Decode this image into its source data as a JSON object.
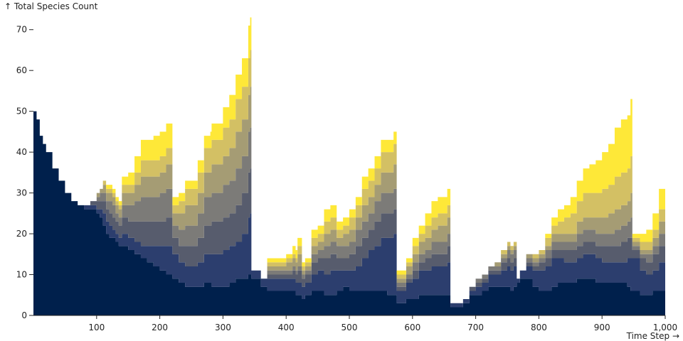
{
  "chart_data": {
    "type": "area",
    "stacked": true,
    "ylabel": "↑ Total Species Count",
    "xlabel": "Time Step →",
    "xlim": [
      0,
      1000
    ],
    "ylim": [
      0,
      75
    ],
    "x_ticks": [
      100,
      200,
      300,
      400,
      500,
      600,
      700,
      800,
      900,
      1000
    ],
    "x_tick_labels": [
      "100",
      "200",
      "300",
      "400",
      "500",
      "600",
      "700",
      "800",
      "900",
      "1,000"
    ],
    "y_ticks": [
      0,
      10,
      20,
      30,
      40,
      50,
      60,
      70
    ],
    "grid": false,
    "colors": [
      "#00204c",
      "#2c3e6e",
      "#575c6d",
      "#7c7b78",
      "#a59c74",
      "#d3c064",
      "#fee838"
    ],
    "x": [
      0,
      5,
      10,
      15,
      20,
      30,
      40,
      50,
      60,
      70,
      80,
      90,
      100,
      105,
      110,
      115,
      120,
      125,
      130,
      135,
      140,
      150,
      160,
      170,
      180,
      190,
      200,
      210,
      211,
      220,
      230,
      240,
      250,
      260,
      270,
      280,
      282,
      285,
      290,
      300,
      310,
      320,
      330,
      340,
      343,
      345,
      350,
      360,
      370,
      380,
      390,
      400,
      410,
      415,
      418,
      420,
      425,
      430,
      440,
      450,
      460,
      470,
      475,
      480,
      490,
      500,
      510,
      520,
      530,
      540,
      550,
      560,
      570,
      575,
      580,
      585,
      590,
      600,
      610,
      620,
      630,
      640,
      655,
      660,
      665,
      670,
      680,
      690,
      700,
      710,
      720,
      730,
      740,
      750,
      755,
      760,
      765,
      770,
      780,
      790,
      800,
      810,
      820,
      830,
      840,
      850,
      860,
      870,
      880,
      890,
      900,
      910,
      920,
      930,
      940,
      945,
      948,
      950,
      960,
      970,
      980,
      990,
      1000
    ],
    "series": [
      {
        "values": [
          50,
          48,
          44,
          42,
          40,
          36,
          33,
          30,
          28,
          27,
          26,
          26,
          25,
          24,
          22,
          20,
          19,
          19,
          18,
          17,
          17,
          16,
          15,
          14,
          13,
          12,
          11,
          10,
          10,
          9,
          8,
          7,
          7,
          7,
          8,
          8,
          7,
          7,
          7,
          7,
          8,
          9,
          9,
          10,
          10,
          9,
          9,
          7,
          6,
          6,
          6,
          6,
          6,
          5,
          5,
          5,
          4,
          5,
          6,
          6,
          5,
          5,
          5,
          6,
          7,
          6,
          6,
          6,
          6,
          6,
          6,
          5,
          5,
          3,
          3,
          3,
          4,
          4,
          5,
          5,
          5,
          5,
          5,
          2,
          2,
          2,
          3,
          5,
          5,
          6,
          7,
          7,
          7,
          7,
          6,
          7,
          8,
          9,
          9,
          7,
          6,
          6,
          7,
          8,
          8,
          8,
          9,
          9,
          9,
          8,
          8,
          8,
          8,
          8,
          7,
          6,
          6,
          6,
          5,
          5,
          6,
          6,
          6
        ]
      },
      {
        "values": [
          0,
          0,
          0,
          0,
          0,
          0,
          0,
          0,
          0,
          0,
          1,
          1,
          1,
          2,
          3,
          3,
          3,
          2,
          2,
          2,
          3,
          3,
          3,
          3,
          4,
          5,
          6,
          7,
          7,
          6,
          5,
          5,
          5,
          6,
          7,
          7,
          8,
          8,
          8,
          9,
          9,
          9,
          11,
          14,
          15,
          2,
          2,
          2,
          3,
          3,
          3,
          3,
          3,
          3,
          3,
          3,
          3,
          3,
          4,
          5,
          5,
          6,
          6,
          5,
          4,
          5,
          6,
          8,
          10,
          11,
          13,
          14,
          15,
          3,
          3,
          3,
          4,
          5,
          6,
          6,
          7,
          7,
          8,
          1,
          1,
          1,
          1,
          1,
          2,
          2,
          3,
          3,
          4,
          5,
          5,
          5,
          1,
          2,
          3,
          4,
          5,
          6,
          7,
          6,
          5,
          5,
          5,
          6,
          6,
          6,
          5,
          5,
          5,
          5,
          7,
          8,
          8,
          8,
          6,
          5,
          5,
          7,
          8
        ]
      },
      {
        "values": [
          0,
          0,
          0,
          0,
          0,
          0,
          0,
          0,
          0,
          0,
          0,
          1,
          2,
          2,
          3,
          3,
          3,
          3,
          3,
          3,
          4,
          4,
          5,
          6,
          6,
          6,
          6,
          7,
          7,
          4,
          4,
          5,
          5,
          6,
          7,
          7,
          8,
          8,
          8,
          8,
          8,
          9,
          10,
          11,
          11,
          0,
          0,
          0,
          1,
          1,
          1,
          1,
          2,
          2,
          3,
          3,
          2,
          2,
          3,
          3,
          4,
          4,
          4,
          3,
          3,
          4,
          5,
          5,
          5,
          6,
          6,
          6,
          6,
          1,
          1,
          1,
          1,
          2,
          2,
          3,
          3,
          3,
          4,
          0,
          0,
          0,
          0,
          1,
          1,
          1,
          1,
          1,
          2,
          2,
          2,
          2,
          0,
          0,
          1,
          1,
          2,
          2,
          2,
          2,
          3,
          3,
          3,
          3,
          3,
          3,
          4,
          4,
          4,
          5,
          5,
          5,
          2,
          2,
          3,
          3,
          4,
          4,
          4
        ]
      },
      {
        "values": [
          0,
          0,
          0,
          0,
          0,
          0,
          0,
          0,
          0,
          0,
          0,
          0,
          1,
          2,
          2,
          2,
          3,
          3,
          2,
          2,
          3,
          4,
          5,
          6,
          6,
          6,
          7,
          7,
          7,
          3,
          4,
          5,
          5,
          6,
          7,
          7,
          7,
          7,
          7,
          8,
          8,
          9,
          9,
          10,
          10,
          0,
          0,
          0,
          1,
          1,
          1,
          1,
          1,
          1,
          1,
          1,
          1,
          1,
          2,
          2,
          3,
          3,
          3,
          3,
          3,
          3,
          4,
          4,
          4,
          5,
          5,
          5,
          5,
          1,
          1,
          1,
          1,
          2,
          2,
          2,
          3,
          3,
          3,
          0,
          0,
          0,
          0,
          0,
          1,
          1,
          1,
          1,
          1,
          2,
          2,
          2,
          0,
          0,
          1,
          1,
          1,
          2,
          2,
          2,
          2,
          2,
          3,
          3,
          3,
          3,
          3,
          3,
          4,
          4,
          4,
          5,
          1,
          1,
          1,
          2,
          2,
          3,
          3
        ]
      },
      {
        "values": [
          0,
          0,
          0,
          0,
          0,
          0,
          0,
          0,
          0,
          0,
          0,
          0,
          1,
          1,
          2,
          2,
          2,
          2,
          2,
          2,
          3,
          3,
          4,
          5,
          5,
          5,
          5,
          6,
          6,
          3,
          4,
          5,
          5,
          5,
          6,
          6,
          7,
          7,
          7,
          7,
          8,
          9,
          9,
          9,
          10,
          0,
          0,
          0,
          1,
          1,
          1,
          2,
          2,
          2,
          3,
          3,
          1,
          1,
          2,
          2,
          3,
          3,
          3,
          2,
          3,
          3,
          3,
          4,
          4,
          4,
          5,
          5,
          6,
          1,
          1,
          1,
          2,
          2,
          3,
          3,
          3,
          4,
          4,
          0,
          0,
          0,
          0,
          0,
          0,
          0,
          0,
          1,
          1,
          1,
          1,
          1,
          0,
          0,
          1,
          1,
          1,
          1,
          2,
          2,
          2,
          2,
          3,
          3,
          3,
          4,
          4,
          5,
          5,
          5,
          5,
          6,
          1,
          1,
          1,
          1,
          2,
          3,
          3
        ]
      },
      {
        "values": [
          0,
          0,
          0,
          0,
          0,
          0,
          0,
          0,
          0,
          0,
          0,
          0,
          0,
          0,
          1,
          1,
          1,
          1,
          1,
          1,
          2,
          2,
          3,
          4,
          4,
          4,
          4,
          4,
          4,
          2,
          3,
          4,
          4,
          5,
          6,
          6,
          6,
          6,
          6,
          7,
          7,
          8,
          8,
          9,
          9,
          0,
          0,
          0,
          1,
          1,
          1,
          1,
          1,
          1,
          2,
          2,
          1,
          1,
          2,
          2,
          3,
          3,
          3,
          2,
          2,
          3,
          3,
          4,
          4,
          4,
          5,
          5,
          5,
          1,
          1,
          1,
          1,
          2,
          2,
          3,
          3,
          3,
          3,
          0,
          0,
          0,
          0,
          0,
          0,
          0,
          0,
          0,
          1,
          1,
          1,
          1,
          0,
          0,
          0,
          1,
          1,
          2,
          2,
          3,
          4,
          5,
          5,
          6,
          6,
          6,
          7,
          7,
          8,
          8,
          8,
          9,
          1,
          1,
          2,
          2,
          2,
          3,
          3
        ]
      },
      {
        "values": [
          0,
          0,
          0,
          0,
          0,
          0,
          0,
          0,
          0,
          0,
          0,
          0,
          0,
          0,
          0,
          1,
          1,
          1,
          1,
          1,
          2,
          3,
          4,
          5,
          5,
          6,
          6,
          6,
          6,
          2,
          2,
          2,
          2,
          3,
          3,
          4,
          4,
          4,
          4,
          5,
          6,
          6,
          7,
          8,
          8,
          0,
          0,
          0,
          1,
          1,
          1,
          1,
          2,
          2,
          2,
          2,
          1,
          1,
          2,
          2,
          3,
          3,
          3,
          2,
          2,
          2,
          2,
          3,
          3,
          3,
          3,
          3,
          3,
          1,
          1,
          1,
          1,
          2,
          2,
          3,
          4,
          4,
          4,
          0,
          0,
          0,
          0,
          0,
          0,
          0,
          0,
          0,
          0,
          0,
          0,
          0,
          0,
          0,
          0,
          0,
          0,
          1,
          2,
          3,
          3,
          4,
          5,
          6,
          7,
          8,
          9,
          10,
          12,
          13,
          13,
          14,
          1,
          1,
          2,
          3,
          4,
          5,
          5
        ]
      }
    ]
  }
}
